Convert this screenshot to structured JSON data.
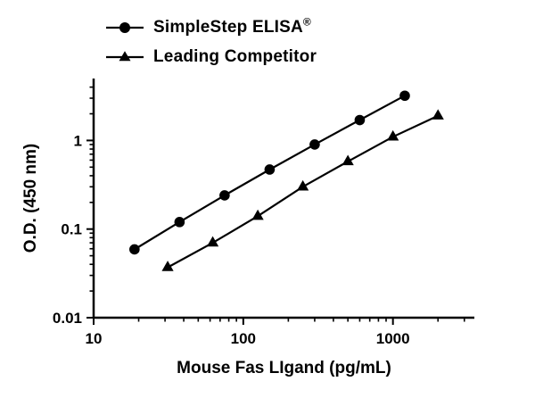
{
  "figure": {
    "background": "#ffffff",
    "ink_color": "#000000"
  },
  "chart_data": {
    "type": "line",
    "title": "",
    "xlabel": "Mouse Fas LIgand (pg/mL)",
    "ylabel": "O.D. (450 nm)",
    "x_scale": "log",
    "y_scale": "log",
    "xlim": [
      10,
      3500
    ],
    "ylim": [
      0.01,
      5
    ],
    "x_major_ticks": [
      10,
      100,
      1000
    ],
    "y_major_ticks": [
      0.01,
      0.1,
      1
    ],
    "grid": false,
    "legend_position": "top-left",
    "series": [
      {
        "name": "SimpleStep ELISA®",
        "marker": "circle",
        "color": "#000000",
        "x": [
          18.75,
          37.5,
          75,
          150,
          300,
          600,
          1200
        ],
        "y": [
          0.059,
          0.12,
          0.24,
          0.47,
          0.9,
          1.7,
          3.2
        ]
      },
      {
        "name": "Leading Competitor",
        "marker": "triangle",
        "color": "#000000",
        "x": [
          31.25,
          62.5,
          125,
          250,
          500,
          1000,
          2000
        ],
        "y": [
          0.037,
          0.07,
          0.14,
          0.3,
          0.58,
          1.1,
          1.9
        ]
      }
    ],
    "legend": {
      "items": [
        {
          "label": "SimpleStep ELISA",
          "sup": "®",
          "marker": "circle"
        },
        {
          "label": "Leading Competitor",
          "sup": "",
          "marker": "triangle"
        }
      ]
    }
  }
}
